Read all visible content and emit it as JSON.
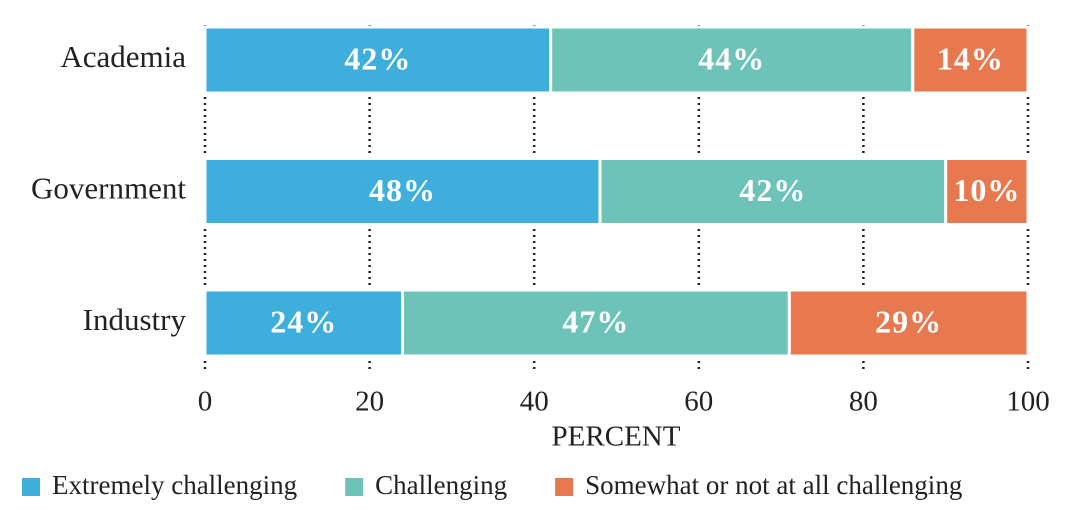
{
  "chart_data": {
    "type": "bar",
    "orientation": "horizontal",
    "stacked": true,
    "categories": [
      "Academia",
      "Government",
      "Industry"
    ],
    "series": [
      {
        "name": "Extremely challenging",
        "color": "#3eaedd",
        "values": [
          42,
          48,
          24
        ],
        "value_labels": [
          "42%",
          "48%",
          "24%"
        ]
      },
      {
        "name": "Challenging",
        "color": "#6ec3b9",
        "values": [
          44,
          42,
          47
        ],
        "value_labels": [
          "44%",
          "42%",
          "47%"
        ]
      },
      {
        "name": "Somewhat or not at all challenging",
        "color": "#e8794f",
        "values": [
          14,
          10,
          29
        ],
        "value_labels": [
          "14%",
          "10%",
          "29%"
        ]
      }
    ],
    "xlabel": "PERCENT",
    "xlim": [
      0,
      100
    ],
    "xticks": [
      0,
      20,
      40,
      60,
      80,
      100
    ],
    "grid": true
  }
}
